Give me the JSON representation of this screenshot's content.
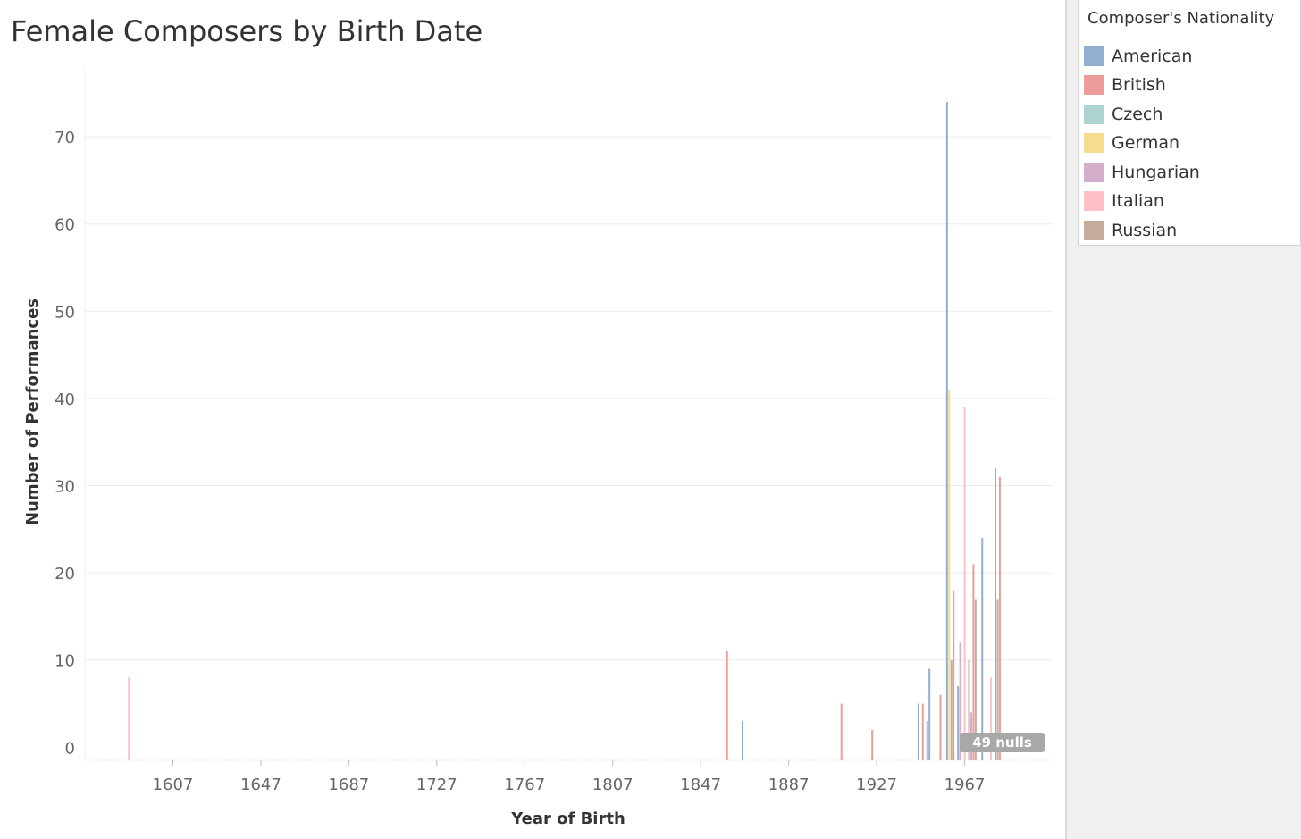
{
  "title": "Female Composers by Birth Date",
  "nulls_label": "49 nulls",
  "legend": {
    "title": "Composer's Nationality",
    "items": [
      {
        "label": "American",
        "color": "#92aed0"
      },
      {
        "label": "British",
        "color": "#ec9d9a"
      },
      {
        "label": "Czech",
        "color": "#abd3cf"
      },
      {
        "label": "German",
        "color": "#f5dc8e"
      },
      {
        "label": "Hungarian",
        "color": "#d3adc9"
      },
      {
        "label": "Italian",
        "color": "#ffc1c6"
      },
      {
        "label": "Russian",
        "color": "#c5aa9d"
      }
    ]
  },
  "chart_data": {
    "type": "bar",
    "title": "Female Composers by Birth Date",
    "xlabel": "Year of Birth",
    "ylabel": "Number of Performances",
    "xlim": [
      1567,
      2007
    ],
    "ylim": [
      -1.5,
      78
    ],
    "x_ticks": [
      1607,
      1647,
      1687,
      1727,
      1767,
      1807,
      1847,
      1887,
      1927,
      1967
    ],
    "y_ticks": [
      0,
      10,
      20,
      30,
      40,
      50,
      60,
      70
    ],
    "grid": "horizontal",
    "legend_position": "right",
    "series": [
      {
        "name": "American",
        "color": "#92aed0",
        "points": [
          [
            1866,
            3
          ],
          [
            1946,
            5
          ],
          [
            1951,
            9
          ],
          [
            1950,
            3
          ],
          [
            1959,
            74
          ],
          [
            1964,
            7
          ],
          [
            1975,
            24
          ],
          [
            1981,
            32
          ]
        ]
      },
      {
        "name": "British",
        "color": "#ec9d9a",
        "points": [
          [
            1859,
            11
          ],
          [
            1911,
            5
          ],
          [
            1925,
            2
          ],
          [
            1948,
            5
          ],
          [
            1956,
            6
          ],
          [
            1962,
            18
          ],
          [
            1971,
            21
          ],
          [
            1983,
            31
          ]
        ]
      },
      {
        "name": "Czech",
        "color": "#abd3cf",
        "points": [
          [
            1965,
            3
          ]
        ]
      },
      {
        "name": "German",
        "color": "#f5dc8e",
        "points": [
          [
            1960,
            41
          ]
        ]
      },
      {
        "name": "Hungarian",
        "color": "#d3adc9",
        "points": [
          [
            1965,
            12
          ],
          [
            1970,
            4
          ]
        ]
      },
      {
        "name": "Italian",
        "color": "#ffc1c6",
        "points": [
          [
            1587,
            8
          ],
          [
            1967,
            39
          ],
          [
            1979,
            8
          ]
        ]
      },
      {
        "name": "Russian",
        "color": "#c5aa9d",
        "points": [
          [
            1961,
            10
          ],
          [
            1969,
            10
          ],
          [
            1972,
            17
          ],
          [
            1982,
            17
          ]
        ]
      }
    ]
  }
}
